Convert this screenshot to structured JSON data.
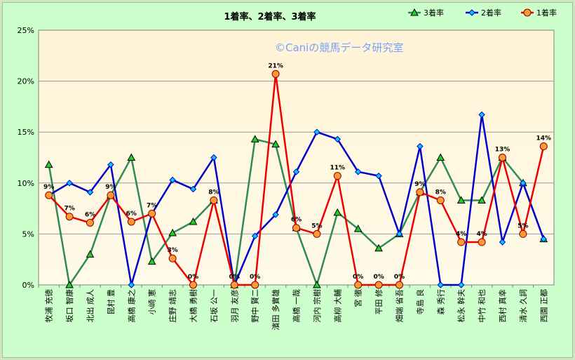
{
  "chart_data": {
    "type": "line",
    "title": "1着率、2着率、3着率",
    "watermark": "©Caniの競馬データ研究室",
    "ylim": [
      0,
      25
    ],
    "yticks": [
      0,
      5,
      10,
      15,
      20,
      25
    ],
    "ytick_labels": [
      "0%",
      "5%",
      "10%",
      "15%",
      "20%",
      "25%"
    ],
    "grid": true,
    "legend_position": "top-right",
    "categories": [
      "牧浦 充徳",
      "坂口 智康",
      "北出 成人",
      "昆村 豊",
      "高橋 康之",
      "小崎 憲",
      "庄野 靖志",
      "大橋 勇樹",
      "石坂 公一",
      "羽月 友彦",
      "野中 賢二",
      "濱田 多實雄",
      "高橋 一哉",
      "河内 宗樹",
      "高柳 大輔",
      "宮 徹",
      "平田 修",
      "畑端 省吾",
      "寺島 良",
      "森 秀行",
      "松永 幹夫",
      "中竹 和也",
      "西村 真幸",
      "清水 久詞",
      "西園 正都"
    ],
    "series": [
      {
        "name": "3着率",
        "color": "#2e8b57",
        "marker": "triangle",
        "marker_fill": "#22cc22",
        "values": [
          11.8,
          0,
          3.0,
          8.8,
          12.5,
          2.3,
          5.1,
          6.2,
          8.3,
          0,
          14.3,
          13.8,
          5.6,
          0,
          7.1,
          5.5,
          3.6,
          5.0,
          9.1,
          12.5,
          8.3,
          8.3,
          12.5,
          10.0,
          4.5
        ]
      },
      {
        "name": "2着率",
        "color": "#0000cc",
        "marker": "diamond",
        "marker_fill": "#00ccff",
        "values": [
          8.8,
          10.0,
          9.1,
          11.8,
          0,
          7.0,
          10.3,
          9.4,
          12.5,
          0,
          4.8,
          6.9,
          11.1,
          15.0,
          14.3,
          11.1,
          10.7,
          5.0,
          13.6,
          0,
          0,
          16.7,
          4.2,
          10.0,
          4.5
        ]
      },
      {
        "name": "1着率",
        "color": "#ee0000",
        "marker": "circle",
        "marker_fill": "#ff9933",
        "values": [
          8.8,
          6.7,
          6.1,
          8.8,
          6.2,
          7.0,
          2.6,
          0,
          8.3,
          0,
          0,
          20.7,
          5.6,
          5.0,
          10.7,
          0,
          0,
          0,
          9.1,
          8.3,
          4.2,
          4.2,
          12.5,
          5.0,
          13.6
        ]
      }
    ],
    "data_labels": [
      "9%",
      "7%",
      "6%",
      "9%",
      "6%",
      "7%",
      "3%",
      "0%",
      "8%",
      "0%",
      "0%",
      "21%",
      "6%",
      "5%",
      "11%",
      "0%",
      "0%",
      "0%",
      "9%",
      "8%",
      "4%",
      "4%",
      "13%",
      "5%",
      "14%"
    ]
  }
}
